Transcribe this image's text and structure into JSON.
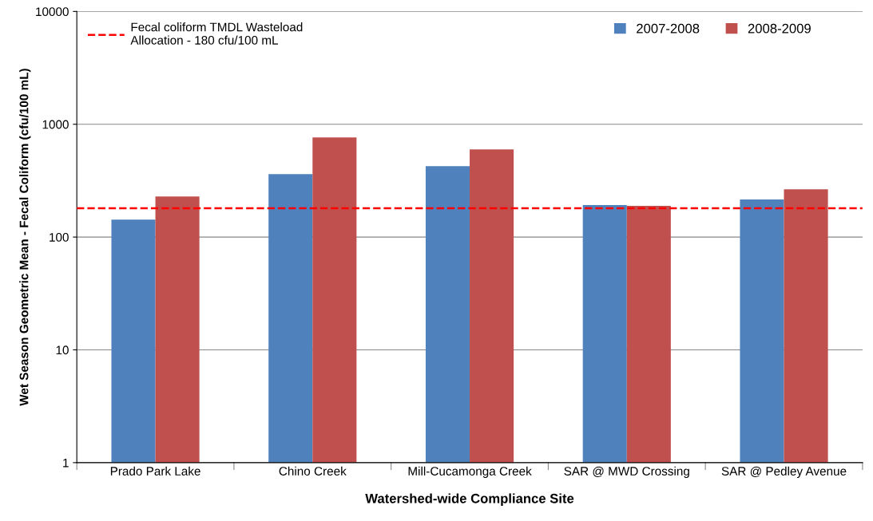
{
  "chart_data": {
    "type": "bar",
    "xlabel": "Watershed-wide Compliance Site",
    "ylabel": "Wet Season Geometric Mean - Fecal Coliform (cfu/100 mL)",
    "categories": [
      "Prado Park Lake",
      "Chino Creek",
      "Mill-Cucamonga Creek",
      "SAR @ MWD Crossing",
      "SAR @ Pedley Avenue"
    ],
    "series": [
      {
        "name": "2007-2008",
        "color": "#4f81bd",
        "values": [
          143,
          362,
          426,
          192,
          215
        ]
      },
      {
        "name": "2008-2009",
        "color": "#c0504d",
        "values": [
          229,
          764,
          599,
          189,
          265
        ]
      }
    ],
    "log": true,
    "ylim": [
      1,
      10000
    ],
    "yticks": [
      1,
      10,
      100,
      1000,
      10000
    ],
    "grid": "y",
    "legend": "top right",
    "ref_lines": [
      {
        "axis": "y",
        "value": 180,
        "label": "Fecal coliform TMDL Wasteload\nAllocation - 180 cfu/100 mL",
        "color": "#ff0000",
        "line_style": "dashed"
      }
    ]
  }
}
